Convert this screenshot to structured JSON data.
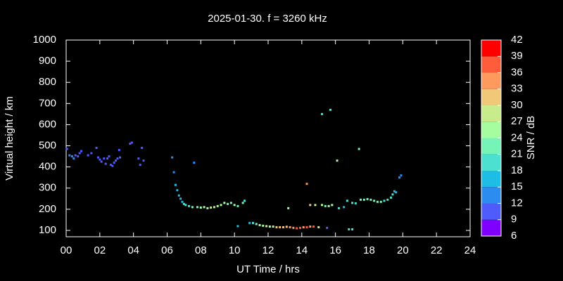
{
  "chart_data": {
    "type": "scatter",
    "title": "2025-01-30. f = 3260 kHz",
    "xlabel": "UT Time / hrs",
    "ylabel": "Virtual height / km",
    "xlim": [
      0,
      24
    ],
    "ylim": [
      70,
      1000
    ],
    "xticks": [
      {
        "value": 0,
        "label": "00"
      },
      {
        "value": 2,
        "label": "02"
      },
      {
        "value": 4,
        "label": "04"
      },
      {
        "value": 6,
        "label": "06"
      },
      {
        "value": 8,
        "label": "08"
      },
      {
        "value": 10,
        "label": "10"
      },
      {
        "value": 12,
        "label": "12"
      },
      {
        "value": 14,
        "label": "14"
      },
      {
        "value": 16,
        "label": "16"
      },
      {
        "value": 18,
        "label": "18"
      },
      {
        "value": 20,
        "label": "20"
      },
      {
        "value": 22,
        "label": "22"
      },
      {
        "value": 24,
        "label": "24"
      }
    ],
    "yticks": [
      100,
      200,
      300,
      400,
      500,
      600,
      700,
      800,
      900,
      1000
    ],
    "colorbar": {
      "label": "SNR / dB",
      "lim": [
        6,
        42
      ],
      "ticks": [
        6,
        9,
        12,
        15,
        18,
        21,
        24,
        27,
        30,
        33,
        36,
        39,
        42
      ],
      "colors": [
        "#8000ff",
        "#4f5bfb",
        "#2c8cf0",
        "#1ebde6",
        "#4be0d0",
        "#76f4b7",
        "#a6fda0",
        "#c8ec8c",
        "#f0c878",
        "#ff9a5f",
        "#ff5c3c",
        "#ff0000"
      ]
    },
    "x": [
      0.05,
      0.2,
      0.35,
      0.45,
      0.55,
      0.7,
      0.8,
      0.9,
      1.3,
      1.5,
      1.8,
      1.9,
      2.0,
      2.1,
      2.25,
      2.35,
      2.45,
      2.55,
      2.65,
      2.75,
      2.85,
      2.95,
      3.05,
      3.15,
      3.2,
      3.8,
      3.9,
      4.3,
      4.4,
      4.5,
      4.6,
      6.3,
      6.4,
      6.5,
      6.6,
      6.7,
      6.8,
      6.9,
      7.0,
      7.1,
      7.3,
      7.5,
      7.6,
      7.8,
      8.0,
      8.2,
      8.4,
      8.6,
      8.8,
      9.0,
      9.2,
      9.4,
      9.6,
      9.8,
      10.0,
      10.2,
      10.5,
      10.6,
      10.2,
      10.9,
      11.1,
      11.3,
      11.5,
      11.7,
      11.9,
      12.1,
      12.3,
      12.5,
      12.7,
      12.9,
      13.1,
      13.3,
      13.5,
      13.7,
      13.9,
      14.1,
      14.3,
      14.5,
      14.7,
      15.0,
      15.5,
      13.2,
      14.3,
      14.5,
      14.8,
      15.2,
      15.4,
      15.6,
      15.8,
      15.2,
      15.7,
      16.1,
      16.2,
      16.5,
      16.7,
      17.0,
      17.2,
      17.4,
      16.8,
      17.0,
      17.5,
      17.7,
      17.9,
      18.1,
      18.3,
      18.5,
      18.7,
      18.9,
      19.1,
      19.3,
      19.4,
      19.5,
      19.6,
      19.8,
      19.9
    ],
    "y": [
      485,
      455,
      450,
      440,
      455,
      450,
      465,
      475,
      455,
      465,
      490,
      445,
      435,
      425,
      440,
      415,
      440,
      450,
      410,
      405,
      420,
      430,
      440,
      480,
      445,
      510,
      515,
      440,
      410,
      490,
      430,
      445,
      375,
      315,
      290,
      265,
      250,
      235,
      225,
      220,
      215,
      210,
      420,
      210,
      208,
      210,
      205,
      208,
      210,
      215,
      220,
      230,
      225,
      230,
      220,
      215,
      230,
      240,
      120,
      135,
      135,
      130,
      125,
      122,
      120,
      118,
      118,
      115,
      115,
      115,
      117,
      115,
      112,
      110,
      112,
      115,
      115,
      118,
      118,
      115,
      112,
      205,
      320,
      220,
      220,
      220,
      215,
      215,
      220,
      650,
      670,
      430,
      205,
      210,
      240,
      230,
      228,
      485,
      105,
      105,
      245,
      245,
      248,
      245,
      240,
      235,
      235,
      240,
      245,
      255,
      270,
      285,
      280,
      350,
      360
    ],
    "snr": [
      11,
      13,
      12,
      13,
      11,
      11,
      11,
      11,
      11,
      11,
      11,
      11,
      11,
      11,
      11,
      11,
      11,
      11,
      11,
      11,
      11,
      11,
      11,
      11,
      11,
      11,
      11,
      11,
      11,
      11,
      11,
      13,
      14,
      15,
      16,
      17,
      17,
      17,
      18,
      19,
      20,
      22,
      13,
      23,
      24,
      24,
      25,
      27,
      28,
      25,
      24,
      24,
      22,
      22,
      24,
      23,
      21,
      19,
      16,
      16,
      18,
      22,
      25,
      26,
      27,
      26,
      28,
      31,
      31,
      32,
      30,
      34,
      35,
      37,
      36,
      35,
      37,
      34,
      36,
      28,
      11,
      26,
      33,
      31,
      28,
      26,
      22,
      24,
      26,
      18,
      20,
      24,
      18,
      16,
      20,
      20,
      20,
      22,
      20,
      20,
      21,
      22,
      23,
      23,
      22,
      21,
      22,
      20,
      19,
      19,
      18,
      17,
      17,
      14,
      14
    ]
  }
}
